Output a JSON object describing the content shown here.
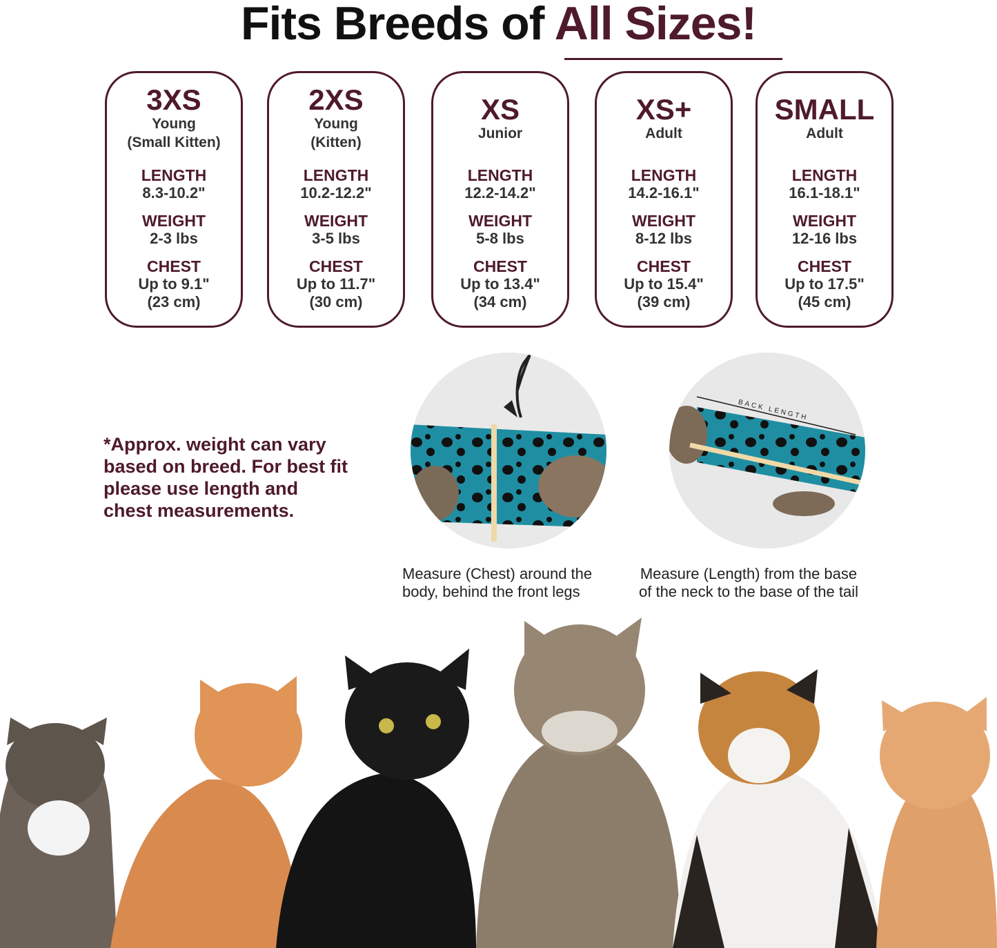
{
  "header": {
    "title_plain": "Fits Breeds of",
    "title_highlight": "All Sizes!"
  },
  "cards": [
    {
      "size": "3XS",
      "subtitle": [
        "Young",
        "(Small Kitten)"
      ],
      "length_label": "LENGTH",
      "length": "8.3-10.2\"",
      "weight_label": "WEIGHT",
      "weight": "2-3 lbs",
      "chest_label": "CHEST",
      "chest": "Up to 9.1\"",
      "chest_cm": "(23 cm)"
    },
    {
      "size": "2XS",
      "subtitle": [
        "Young",
        "(Kitten)"
      ],
      "length_label": "LENGTH",
      "length": "10.2-12.2\"",
      "weight_label": "WEIGHT",
      "weight": "3-5 lbs",
      "chest_label": "CHEST",
      "chest": "Up to 11.7\"",
      "chest_cm": "(30 cm)"
    },
    {
      "size": "XS",
      "subtitle": [
        "Junior"
      ],
      "length_label": "LENGTH",
      "length": "12.2-14.2\"",
      "weight_label": "WEIGHT",
      "weight": "5-8 lbs",
      "chest_label": "CHEST",
      "chest": "Up to 13.4\"",
      "chest_cm": "(34 cm)"
    },
    {
      "size": "XS+",
      "subtitle": [
        "Adult"
      ],
      "length_label": "LENGTH",
      "length": "14.2-16.1\"",
      "weight_label": "WEIGHT",
      "weight": "8-12 lbs",
      "chest_label": "CHEST",
      "chest": "Up to 15.4\"",
      "chest_cm": "(39 cm)"
    },
    {
      "size": "SMALL",
      "subtitle": [
        "Adult"
      ],
      "length_label": "LENGTH",
      "length": "16.1-18.1\"",
      "weight_label": "WEIGHT",
      "weight": "12-16 lbs",
      "chest_label": "CHEST",
      "chest": "Up to 17.5\"",
      "chest_cm": "(45 cm)"
    }
  ],
  "note": [
    "*Approx. weight can vary",
    "based on breed. For best fit",
    "please use length and",
    "chest measurements."
  ],
  "photos": {
    "length_tape_label": "BACK LENGTH"
  },
  "captions": [
    [
      "Measure (Chest) around the",
      "body, behind the front legs"
    ],
    [
      "Measure (Length) from the base",
      "of the neck to the base of the tail"
    ]
  ]
}
